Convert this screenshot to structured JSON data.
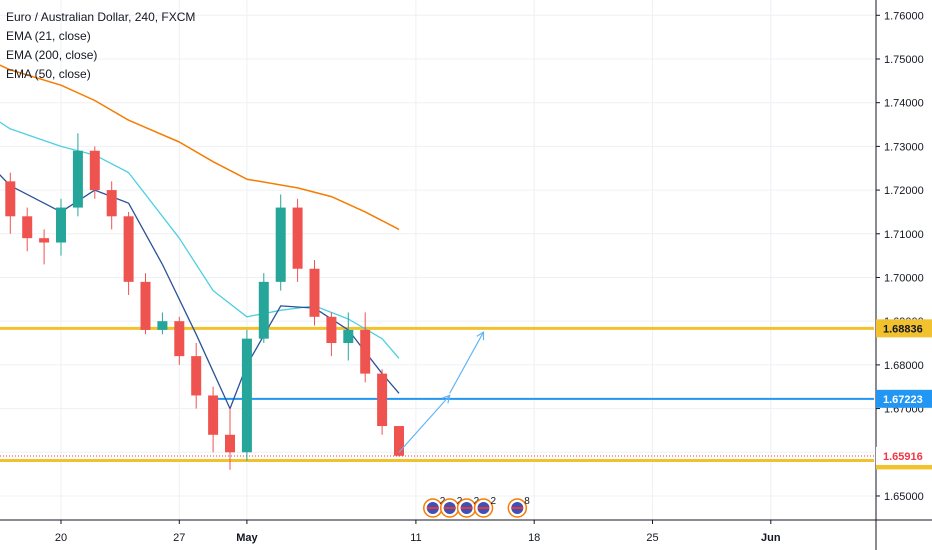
{
  "legend": {
    "title": "Euro / Australian Dollar, 240, FXCM",
    "ema21": "EMA (21, close)",
    "ema200": "EMA (200, close)",
    "ema50": "EMA (50, close)"
  },
  "colors": {
    "up": "#26a69a",
    "down": "#ef5350",
    "ema21": "#2a5298",
    "ema50": "#4dd0e1",
    "ema200": "#f57c00",
    "yellow_line": "#f2c12e",
    "blue_line": "#2196f3",
    "arrow": "#64b5f6",
    "grid": "#eef0f4",
    "last_price_tag": "#f23645"
  },
  "chart_data": {
    "type": "candlestick",
    "y_axis": {
      "range": [
        1.6445,
        1.7635
      ],
      "ticks": [
        "1.76000",
        "1.75000",
        "1.74000",
        "1.73000",
        "1.72000",
        "1.71000",
        "1.70000",
        "1.69000",
        "1.68000",
        "1.67000",
        "1.66000",
        "1.65000"
      ]
    },
    "x_axis": {
      "ticks": [
        {
          "label": "20",
          "bold": false
        },
        {
          "label": "27",
          "bold": false
        },
        {
          "label": "May",
          "bold": true
        },
        {
          "label": "11",
          "bold": false
        },
        {
          "label": "18",
          "bold": false
        },
        {
          "label": "25",
          "bold": false
        },
        {
          "label": "Jun",
          "bold": true
        }
      ]
    },
    "horizontal_levels": [
      {
        "name": "resistance-yellow",
        "value": 1.68836,
        "label": "1.68836",
        "color": "#f2c12e",
        "tag_text_color": "#131722",
        "width": 3
      },
      {
        "name": "resistance-blue",
        "value": 1.67223,
        "label": "1.67223",
        "color": "#2196f3",
        "tag_text_color": "#ffffff",
        "width": 2,
        "start": "2020-04-29"
      },
      {
        "name": "support-yellow",
        "value": 1.65813,
        "label": "1.65813",
        "color": "#f2c12e",
        "tag_text_color": "#131722",
        "width": 3
      }
    ],
    "last_price": {
      "value": 1.65916,
      "label": "1.65916"
    },
    "ema200": [
      [
        "2020-04-15",
        1.751
      ],
      [
        "2020-04-17",
        1.7475
      ],
      [
        "2020-04-20",
        1.744
      ],
      [
        "2020-04-22",
        1.7405
      ],
      [
        "2020-04-24",
        1.736
      ],
      [
        "2020-04-27",
        1.731
      ],
      [
        "2020-04-29",
        1.7265
      ],
      [
        "2020-05-01",
        1.7225
      ],
      [
        "2020-05-04",
        1.7205
      ],
      [
        "2020-05-06",
        1.7185
      ],
      [
        "2020-05-08",
        1.715
      ],
      [
        "2020-05-10",
        1.711
      ]
    ],
    "ema50": [
      [
        "2020-04-15",
        1.739
      ],
      [
        "2020-04-17",
        1.734
      ],
      [
        "2020-04-20",
        1.73
      ],
      [
        "2020-04-22",
        1.728
      ],
      [
        "2020-04-24",
        1.724
      ],
      [
        "2020-04-27",
        1.709
      ],
      [
        "2020-04-29",
        1.697
      ],
      [
        "2020-05-01",
        1.691
      ],
      [
        "2020-05-03",
        1.6925
      ],
      [
        "2020-05-05",
        1.6935
      ],
      [
        "2020-05-07",
        1.6905
      ],
      [
        "2020-05-09",
        1.686
      ],
      [
        "2020-05-10",
        1.6815
      ]
    ],
    "ema21": [
      [
        "2020-04-15",
        1.729
      ],
      [
        "2020-04-17",
        1.721
      ],
      [
        "2020-04-20",
        1.715
      ],
      [
        "2020-04-22",
        1.72
      ],
      [
        "2020-04-24",
        1.717
      ],
      [
        "2020-04-26",
        1.703
      ],
      [
        "2020-04-28",
        1.687
      ],
      [
        "2020-04-30",
        1.67
      ],
      [
        "2020-05-01",
        1.68
      ],
      [
        "2020-05-03",
        1.6935
      ],
      [
        "2020-05-05",
        1.693
      ],
      [
        "2020-05-07",
        1.688
      ],
      [
        "2020-05-09",
        1.678
      ],
      [
        "2020-05-10",
        1.6735
      ]
    ],
    "candles": [
      [
        "2020-04-15",
        1.727,
        1.733,
        1.724,
        1.73
      ],
      [
        "2020-04-16",
        1.73,
        1.7335,
        1.72,
        1.722
      ],
      [
        "2020-04-17",
        1.722,
        1.724,
        1.71,
        1.714
      ],
      [
        "2020-04-18",
        1.714,
        1.716,
        1.706,
        1.709
      ],
      [
        "2020-04-19",
        1.709,
        1.711,
        1.703,
        1.708
      ],
      [
        "2020-04-20",
        1.708,
        1.718,
        1.705,
        1.716
      ],
      [
        "2020-04-21",
        1.716,
        1.733,
        1.714,
        1.729
      ],
      [
        "2020-04-22",
        1.729,
        1.73,
        1.718,
        1.72
      ],
      [
        "2020-04-23",
        1.72,
        1.722,
        1.711,
        1.714
      ],
      [
        "2020-04-24",
        1.714,
        1.715,
        1.696,
        1.699
      ],
      [
        "2020-04-25",
        1.699,
        1.701,
        1.687,
        1.688
      ],
      [
        "2020-04-26",
        1.688,
        1.692,
        1.687,
        1.69
      ],
      [
        "2020-04-27",
        1.69,
        1.691,
        1.68,
        1.682
      ],
      [
        "2020-04-28",
        1.682,
        1.685,
        1.67,
        1.673
      ],
      [
        "2020-04-29",
        1.673,
        1.675,
        1.66,
        1.664
      ],
      [
        "2020-04-30",
        1.664,
        1.67,
        1.656,
        1.66
      ],
      [
        "2020-05-01",
        1.66,
        1.688,
        1.658,
        1.686
      ],
      [
        "2020-05-02",
        1.686,
        1.701,
        1.685,
        1.699
      ],
      [
        "2020-05-03",
        1.699,
        1.719,
        1.697,
        1.716
      ],
      [
        "2020-05-04",
        1.716,
        1.718,
        1.699,
        1.702
      ],
      [
        "2020-05-05",
        1.702,
        1.704,
        1.689,
        1.691
      ],
      [
        "2020-05-06",
        1.691,
        1.692,
        1.682,
        1.685
      ],
      [
        "2020-05-07",
        1.685,
        1.692,
        1.681,
        1.688
      ],
      [
        "2020-05-08",
        1.688,
        1.692,
        1.676,
        1.678
      ],
      [
        "2020-05-09",
        1.678,
        1.679,
        1.664,
        1.666
      ],
      [
        "2020-05-10",
        1.666,
        1.665,
        1.659,
        1.6592
      ]
    ],
    "arrows": [
      {
        "name": "arrow-to-blue",
        "from": [
          "2020-05-10",
          1.66
        ],
        "to": [
          "2020-05-13",
          1.673
        ]
      },
      {
        "name": "arrow-to-yellow",
        "from": [
          "2020-05-13",
          1.6735
        ],
        "to": [
          "2020-05-15",
          1.6875
        ]
      }
    ],
    "events": [
      {
        "date": "2020-05-12",
        "count": "2"
      },
      {
        "date": "2020-05-13",
        "count": "2"
      },
      {
        "date": "2020-05-14",
        "count": "2"
      },
      {
        "date": "2020-05-15",
        "count": "2"
      },
      {
        "date": "2020-05-17",
        "count": "8"
      }
    ]
  }
}
